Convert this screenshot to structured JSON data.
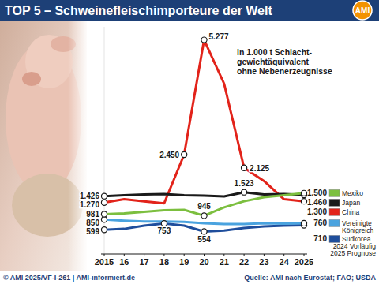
{
  "chart_data": {
    "type": "line",
    "title": "TOP 5 – Schweinefleischimporteure der Welt",
    "subtitle": [
      "in 1.000 t Schlacht-",
      "gewichtäquivalent",
      "ohne Nebenerzeugnisse"
    ],
    "notes": [
      "2024 Vorläufig",
      "2025 Prognose"
    ],
    "source": "Quelle: AMI nach Eurostat; FAO; USDA",
    "copyright": "© AMI 2025/VF-I-261 | AMI-informiert.de",
    "logo": "AMI",
    "categories": [
      "2015",
      "16",
      "17",
      "18",
      "19",
      "20",
      "21",
      "22",
      "23",
      "24",
      "2025"
    ],
    "ylim": [
      0,
      5600
    ],
    "yticks": [],
    "tick_labels": "x",
    "legend": "right",
    "marker": "circle",
    "series": [
      {
        "name": "Mexiko",
        "color": "#7cbf3f",
        "values": [
          981,
          1000,
          1040,
          1080,
          1090,
          945,
          1150,
          1300,
          1400,
          1450,
          1500
        ],
        "value_labels": [
          "981",
          null,
          null,
          null,
          null,
          "945",
          null,
          null,
          null,
          null,
          "1.500"
        ]
      },
      {
        "name": "Japan",
        "color": "#1a1a1a",
        "values": [
          1426,
          1450,
          1470,
          1480,
          1450,
          1440,
          1420,
          1523,
          1470,
          1480,
          1460
        ],
        "value_labels": [
          "1.426",
          null,
          null,
          null,
          null,
          null,
          null,
          "1.523",
          null,
          null,
          "1.460"
        ]
      },
      {
        "name": "China",
        "color": "#e2231a",
        "values": [
          1270,
          1350,
          1300,
          1250,
          2450,
          5277,
          4200,
          2125,
          1800,
          1350,
          1300
        ],
        "value_labels": [
          "1.270",
          null,
          null,
          null,
          "2.450",
          "5.277",
          null,
          "2.125",
          null,
          null,
          "1.300"
        ]
      },
      {
        "name": "Vereinigte Königreich",
        "color": "#4aa3df",
        "values": [
          850,
          820,
          800,
          800,
          790,
          760,
          740,
          740,
          760,
          750,
          760
        ],
        "value_labels": [
          "850",
          null,
          null,
          null,
          null,
          null,
          null,
          null,
          null,
          null,
          "760"
        ]
      },
      {
        "name": "Südkorea",
        "color": "#1f4e9c",
        "values": [
          599,
          620,
          700,
          753,
          700,
          554,
          580,
          640,
          680,
          700,
          710
        ],
        "value_labels": [
          "599",
          null,
          null,
          "753",
          null,
          "554",
          null,
          null,
          null,
          null,
          "710"
        ]
      }
    ]
  }
}
